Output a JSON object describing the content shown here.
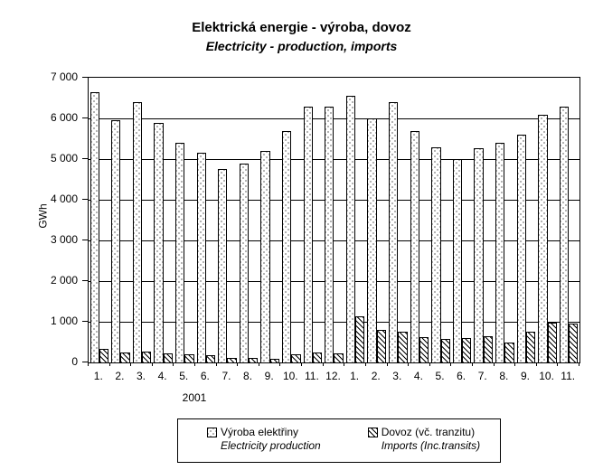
{
  "title": "Elektrická energie - výroba, dovoz",
  "subtitle": "Electricity - production, imports",
  "chart_data": {
    "type": "bar",
    "categories": [
      "1.",
      "2.",
      "3.",
      "4.",
      "5.",
      "6.",
      "7.",
      "8.",
      "9.",
      "10.",
      "11.",
      "12.",
      "1.",
      "2.",
      "3.",
      "4.",
      "5.",
      "6.",
      "7.",
      "8.",
      "9.",
      "10.",
      "11."
    ],
    "x_year_label": "2001",
    "ylabel": "GWh",
    "ylim": [
      0,
      7000
    ],
    "ytick_step": 1000,
    "ytick_labels": [
      "0",
      "1 000",
      "2 000",
      "3 000",
      "4 000",
      "5 000",
      "6 000",
      "7 000"
    ],
    "grid": true,
    "legend_position": "bottom",
    "series": [
      {
        "name": "Výroba elektřiny",
        "name_en": "Electricity production",
        "pattern": "dots",
        "values": [
          6650,
          5950,
          6400,
          5900,
          5400,
          5150,
          4750,
          4900,
          5200,
          5700,
          6280,
          6300,
          6550,
          6000,
          6400,
          5700,
          5300,
          5000,
          5270,
          5400,
          5600,
          6090,
          6300
        ]
      },
      {
        "name": "Dovoz (vč. tranzitu)",
        "name_en": "Imports (Inc.transits)",
        "pattern": "diagonal-hatch",
        "values": [
          330,
          240,
          270,
          220,
          200,
          170,
          110,
          110,
          100,
          200,
          240,
          220,
          1130,
          790,
          760,
          630,
          570,
          610,
          640,
          500,
          760,
          980,
          960
        ]
      }
    ]
  }
}
